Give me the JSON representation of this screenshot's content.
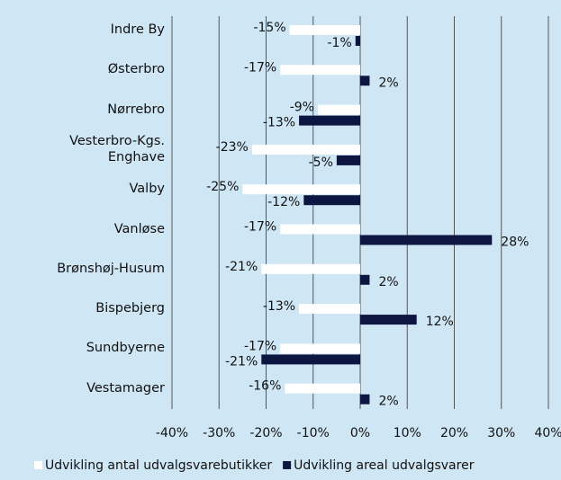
{
  "chart_data": {
    "type": "bar",
    "orientation": "horizontal",
    "categories": [
      "Indre By",
      "Østerbro",
      "Nørrebro",
      "Vesterbro-Kgs. Enghave",
      "Valby",
      "Vanløse",
      "Brønshøj-Husum",
      "Bispebjerg",
      "Sundbyerne",
      "Vestamager"
    ],
    "series": [
      {
        "name": "Udvikling antal udvalgsvarebutikker",
        "color": "#ffffff",
        "values": [
          -15,
          -17,
          -9,
          -23,
          -25,
          -17,
          -21,
          -13,
          -17,
          -16
        ],
        "value_labels": [
          "-15%",
          "-17%",
          "-9%",
          "-23%",
          "-25%",
          "-17%",
          "-21%",
          "-13%",
          "-17%",
          "-16%"
        ]
      },
      {
        "name": "Udvikling areal udvalgsvarer",
        "color": "#0d1640",
        "values": [
          -1,
          2,
          -13,
          -5,
          -12,
          28,
          2,
          12,
          -21,
          2
        ],
        "value_labels": [
          "-1%",
          "2%",
          "-13%",
          "-5%",
          "-12%",
          "28%",
          "2%",
          "12%",
          "-21%",
          "2%"
        ]
      }
    ],
    "xlim": [
      -40,
      40
    ],
    "xticks": [
      {
        "value": -40,
        "label": "-40%"
      },
      {
        "value": -30,
        "label": "-30%"
      },
      {
        "value": -20,
        "label": "-20%"
      },
      {
        "value": -10,
        "label": "-10%"
      },
      {
        "value": 0,
        "label": "0%"
      },
      {
        "value": 10,
        "label": "10%"
      },
      {
        "value": 20,
        "label": "20%"
      },
      {
        "value": 30,
        "label": "30%"
      },
      {
        "value": 40,
        "label": "40%"
      }
    ],
    "grid": true,
    "legend": "bottom"
  }
}
